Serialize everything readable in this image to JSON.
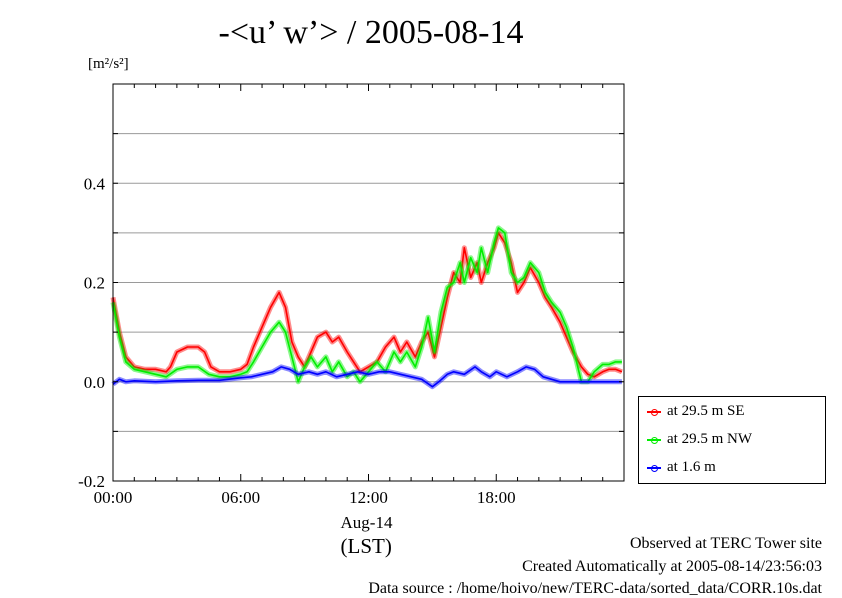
{
  "chart_data": {
    "type": "line",
    "title": "-<u’ w’> / 2005-08-14",
    "ylabel": "[m²/s²]",
    "ylim": [
      -0.2,
      0.6
    ],
    "xlim": [
      0,
      24
    ],
    "yticks": [
      {
        "value": -0.2,
        "label": "-0.2"
      },
      {
        "value": 0.0,
        "label": "0.0"
      },
      {
        "value": 0.2,
        "label": "0.2"
      },
      {
        "value": 0.4,
        "label": "0.4"
      }
    ],
    "ygrid": [
      -0.1,
      0.1,
      0.3,
      0.5
    ],
    "xticks": [
      {
        "value": 0,
        "label": "00:00"
      },
      {
        "value": 6,
        "label": "06:00"
      },
      {
        "value": 12,
        "label": "12:00"
      },
      {
        "value": 18,
        "label": "18:00"
      }
    ],
    "xlabel_date": "Aug-14",
    "xlabel_unit": "(LST)",
    "grid": true,
    "legend_position": "bottom-right outside",
    "series": [
      {
        "name": "at 29.5 m SE",
        "color": "#ff0000",
        "points": [
          [
            0,
            0.17
          ],
          [
            0.3,
            0.1
          ],
          [
            0.6,
            0.05
          ],
          [
            1,
            0.03
          ],
          [
            1.5,
            0.025
          ],
          [
            2,
            0.025
          ],
          [
            2.5,
            0.02
          ],
          [
            2.7,
            0.03
          ],
          [
            3,
            0.06
          ],
          [
            3.5,
            0.07
          ],
          [
            4,
            0.07
          ],
          [
            4.3,
            0.06
          ],
          [
            4.6,
            0.03
          ],
          [
            5,
            0.02
          ],
          [
            5.5,
            0.02
          ],
          [
            6,
            0.025
          ],
          [
            6.3,
            0.035
          ],
          [
            6.6,
            0.07
          ],
          [
            7,
            0.11
          ],
          [
            7.4,
            0.15
          ],
          [
            7.8,
            0.18
          ],
          [
            8.1,
            0.15
          ],
          [
            8.4,
            0.08
          ],
          [
            8.7,
            0.05
          ],
          [
            9,
            0.03
          ],
          [
            9.3,
            0.06
          ],
          [
            9.6,
            0.09
          ],
          [
            10,
            0.1
          ],
          [
            10.3,
            0.08
          ],
          [
            10.6,
            0.09
          ],
          [
            11,
            0.06
          ],
          [
            11.3,
            0.04
          ],
          [
            11.6,
            0.02
          ],
          [
            12,
            0.03
          ],
          [
            12.4,
            0.04
          ],
          [
            12.8,
            0.07
          ],
          [
            13.2,
            0.09
          ],
          [
            13.5,
            0.06
          ],
          [
            13.8,
            0.08
          ],
          [
            14.2,
            0.05
          ],
          [
            14.5,
            0.08
          ],
          [
            14.8,
            0.1
          ],
          [
            15.1,
            0.05
          ],
          [
            15.4,
            0.11
          ],
          [
            15.7,
            0.17
          ],
          [
            16,
            0.22
          ],
          [
            16.3,
            0.2
          ],
          [
            16.5,
            0.27
          ],
          [
            16.8,
            0.21
          ],
          [
            17.1,
            0.24
          ],
          [
            17.3,
            0.2
          ],
          [
            17.6,
            0.24
          ],
          [
            17.9,
            0.27
          ],
          [
            18.1,
            0.3
          ],
          [
            18.4,
            0.28
          ],
          [
            18.7,
            0.24
          ],
          [
            19,
            0.18
          ],
          [
            19.3,
            0.2
          ],
          [
            19.6,
            0.23
          ],
          [
            20,
            0.2
          ],
          [
            20.3,
            0.17
          ],
          [
            20.6,
            0.15
          ],
          [
            21,
            0.12
          ],
          [
            21.3,
            0.09
          ],
          [
            21.6,
            0.06
          ],
          [
            22,
            0.03
          ],
          [
            22.3,
            0.015
          ],
          [
            22.6,
            0.01
          ],
          [
            23,
            0.02
          ],
          [
            23.3,
            0.025
          ],
          [
            23.6,
            0.025
          ],
          [
            23.9,
            0.02
          ]
        ]
      },
      {
        "name": "at 29.5 m NW",
        "color": "#00ee00",
        "points": [
          [
            0,
            0.16
          ],
          [
            0.3,
            0.09
          ],
          [
            0.6,
            0.04
          ],
          [
            1,
            0.025
          ],
          [
            1.5,
            0.02
          ],
          [
            2,
            0.015
          ],
          [
            2.5,
            0.01
          ],
          [
            3,
            0.025
          ],
          [
            3.5,
            0.03
          ],
          [
            4,
            0.03
          ],
          [
            4.5,
            0.015
          ],
          [
            5,
            0.01
          ],
          [
            5.5,
            0.01
          ],
          [
            6,
            0.015
          ],
          [
            6.3,
            0.02
          ],
          [
            6.6,
            0.04
          ],
          [
            7,
            0.07
          ],
          [
            7.4,
            0.1
          ],
          [
            7.8,
            0.12
          ],
          [
            8.1,
            0.1
          ],
          [
            8.4,
            0.05
          ],
          [
            8.7,
            0.0
          ],
          [
            9,
            0.03
          ],
          [
            9.3,
            0.05
          ],
          [
            9.6,
            0.03
          ],
          [
            10,
            0.05
          ],
          [
            10.3,
            0.02
          ],
          [
            10.6,
            0.04
          ],
          [
            11,
            0.01
          ],
          [
            11.3,
            0.02
          ],
          [
            11.6,
            0.0
          ],
          [
            12,
            0.02
          ],
          [
            12.4,
            0.04
          ],
          [
            12.8,
            0.02
          ],
          [
            13.2,
            0.06
          ],
          [
            13.5,
            0.04
          ],
          [
            13.8,
            0.06
          ],
          [
            14.2,
            0.03
          ],
          [
            14.5,
            0.07
          ],
          [
            14.8,
            0.13
          ],
          [
            15.1,
            0.06
          ],
          [
            15.4,
            0.14
          ],
          [
            15.7,
            0.19
          ],
          [
            16,
            0.2
          ],
          [
            16.3,
            0.24
          ],
          [
            16.5,
            0.2
          ],
          [
            16.8,
            0.25
          ],
          [
            17.1,
            0.22
          ],
          [
            17.3,
            0.27
          ],
          [
            17.6,
            0.22
          ],
          [
            17.9,
            0.28
          ],
          [
            18.1,
            0.31
          ],
          [
            18.4,
            0.3
          ],
          [
            18.7,
            0.22
          ],
          [
            19,
            0.2
          ],
          [
            19.3,
            0.21
          ],
          [
            19.6,
            0.24
          ],
          [
            20,
            0.22
          ],
          [
            20.3,
            0.18
          ],
          [
            20.6,
            0.16
          ],
          [
            21,
            0.14
          ],
          [
            21.3,
            0.11
          ],
          [
            21.6,
            0.07
          ],
          [
            22,
            0.0
          ],
          [
            22.3,
            0.0
          ],
          [
            22.6,
            0.02
          ],
          [
            23,
            0.035
          ],
          [
            23.3,
            0.035
          ],
          [
            23.6,
            0.04
          ],
          [
            23.9,
            0.04
          ]
        ]
      },
      {
        "name": "at 1.6 m",
        "color": "#0000ff",
        "points": [
          [
            0,
            -0.005
          ],
          [
            0.3,
            0.005
          ],
          [
            0.6,
            0.0
          ],
          [
            1,
            0.002
          ],
          [
            2,
            0.0
          ],
          [
            3,
            0.002
          ],
          [
            4,
            0.003
          ],
          [
            5,
            0.003
          ],
          [
            6,
            0.008
          ],
          [
            6.5,
            0.01
          ],
          [
            7,
            0.015
          ],
          [
            7.5,
            0.02
          ],
          [
            7.9,
            0.03
          ],
          [
            8.3,
            0.025
          ],
          [
            8.7,
            0.015
          ],
          [
            9.2,
            0.02
          ],
          [
            9.6,
            0.015
          ],
          [
            10,
            0.02
          ],
          [
            10.5,
            0.01
          ],
          [
            11,
            0.015
          ],
          [
            11.5,
            0.02
          ],
          [
            12,
            0.015
          ],
          [
            12.5,
            0.02
          ],
          [
            13,
            0.02
          ],
          [
            13.5,
            0.015
          ],
          [
            14,
            0.01
          ],
          [
            14.5,
            0.005
          ],
          [
            15,
            -0.01
          ],
          [
            15.3,
            0.0
          ],
          [
            15.7,
            0.015
          ],
          [
            16,
            0.02
          ],
          [
            16.5,
            0.015
          ],
          [
            17,
            0.03
          ],
          [
            17.3,
            0.02
          ],
          [
            17.7,
            0.01
          ],
          [
            18,
            0.02
          ],
          [
            18.5,
            0.01
          ],
          [
            19,
            0.02
          ],
          [
            19.4,
            0.03
          ],
          [
            19.8,
            0.025
          ],
          [
            20.2,
            0.01
          ],
          [
            20.6,
            0.005
          ],
          [
            21,
            0.0
          ],
          [
            22,
            0.0
          ],
          [
            23,
            0.0
          ],
          [
            23.9,
            0.0
          ]
        ]
      }
    ]
  },
  "footer": {
    "line1": "Observed at TERC Tower site",
    "line2": "Created Automatically at 2005-08-14/23:56:03",
    "line3": "Data source : /home/hoivo/new/TERC-data/sorted_data/CORR.10s.dat"
  }
}
